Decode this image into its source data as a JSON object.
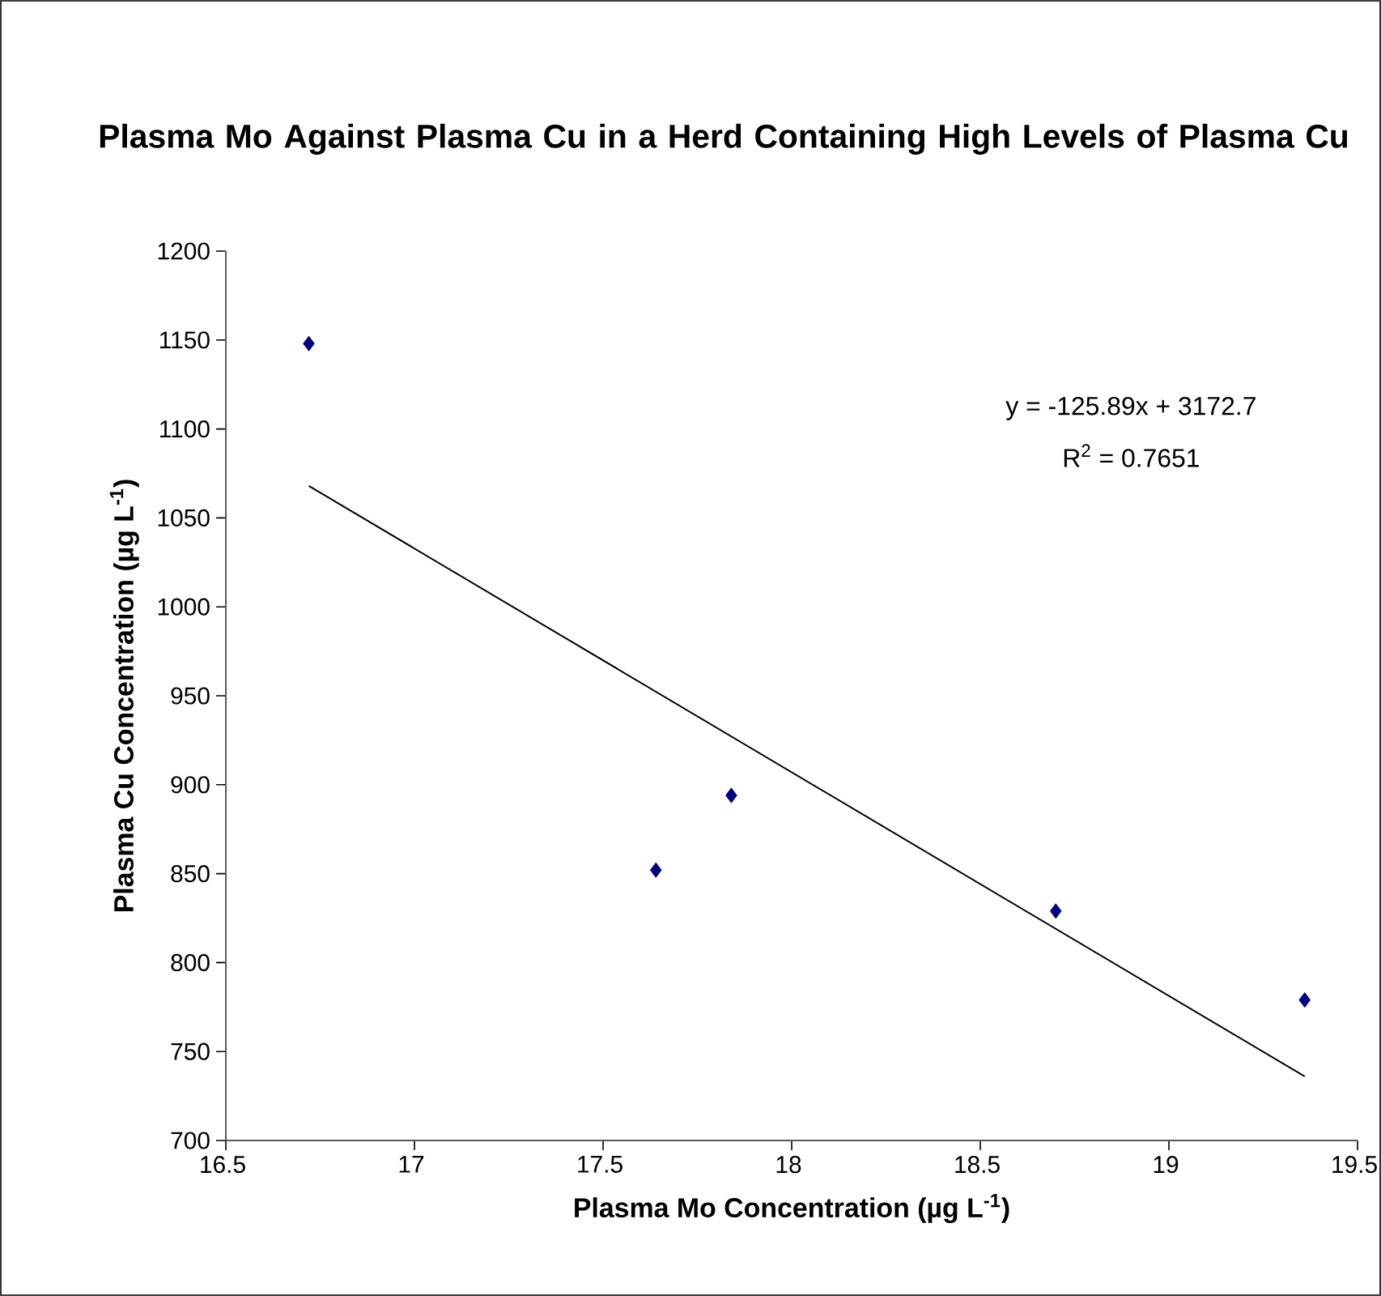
{
  "chart_data": {
    "type": "scatter",
    "title": "Plasma Mo Against Plasma Cu in a Herd Containing High Levels of Plasma Cu",
    "xlabel": "Plasma Mo Concentration (µg L$^{-1}$)",
    "ylabel": "Plasma Cu Concentration (µg L$^{-1}$)",
    "series": [
      {
        "color": "#000080",
        "x": [
          16.72,
          17.64,
          17.84,
          18.7,
          19.36
        ],
        "values": [
          1148,
          852,
          894,
          829,
          779
        ]
      },
      {
        "type": "line",
        "color": "#000000",
        "x": [
          16.72,
          19.36
        ],
        "values": [
          1068,
          736
        ],
        "marker": "none"
      }
    ],
    "annotations": [
      "y = -125.89x + 3172.7",
      "R$^{2}$ = 0.7651"
    ],
    "xlim": [
      16.5,
      19.5
    ],
    "xticks": [
      16.5,
      17,
      17.5,
      18,
      18.5,
      19,
      19.5
    ],
    "ylim": [
      700,
      1200
    ],
    "yticks": [
      700,
      750,
      800,
      850,
      900,
      950,
      1000,
      1050,
      1100,
      1150,
      1200
    ],
    "grid": false,
    "marker": "diamond"
  }
}
